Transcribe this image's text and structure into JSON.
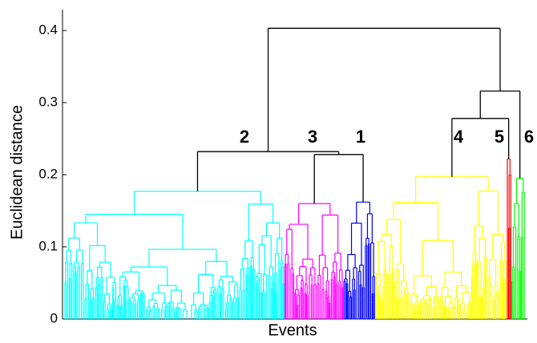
{
  "chart_data": {
    "type": "dendrogram",
    "xlabel": "Events",
    "ylabel": "Euclidean distance",
    "ylim": [
      0,
      0.42
    ],
    "yticks": [
      0,
      0.1,
      0.2,
      0.3,
      0.4
    ],
    "clusters": [
      {
        "name": "2",
        "color": "#00ffff",
        "height": 0.177
      },
      {
        "name": "3",
        "color": "#ff00ff",
        "height": 0.16
      },
      {
        "name": "1",
        "color": "#0000ff",
        "height": 0.162
      },
      {
        "name": "4",
        "color": "#ffff00",
        "height": 0.197
      },
      {
        "name": "5",
        "color": "#ff0000",
        "height": 0.222
      },
      {
        "name": "6",
        "color": "#00ff00",
        "height": 0.195
      }
    ],
    "merges": [
      0.228,
      0.232,
      0.278,
      0.316,
      0.403
    ]
  }
}
